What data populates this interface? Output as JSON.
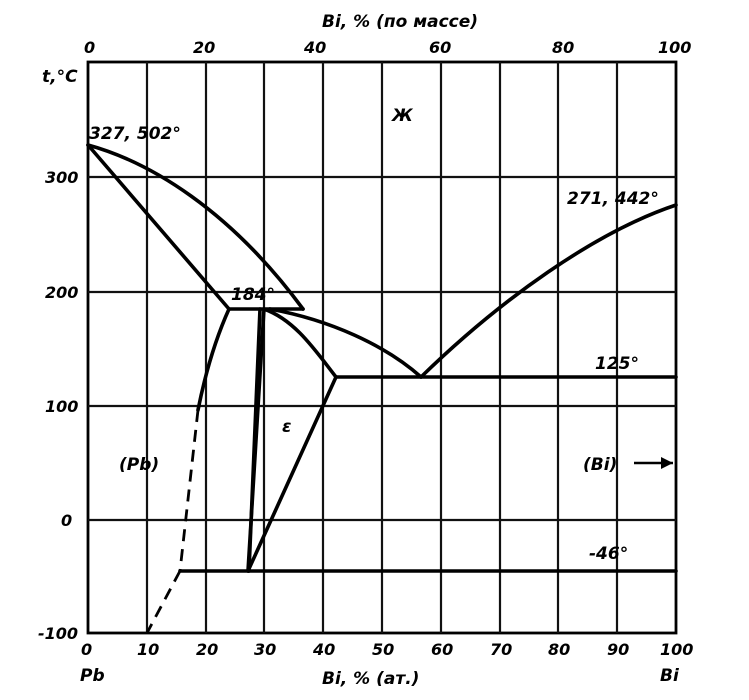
{
  "axes": {
    "top_title": "Bi, % (по массе)",
    "top_ticks": [
      "0",
      "20",
      "40",
      "60",
      "80",
      "100"
    ],
    "left_title": "t,°C",
    "left_ticks": [
      "300",
      "200",
      "100",
      "0",
      "-100"
    ],
    "bottom_title": "Bi, % (ат.)",
    "bottom_ticks": [
      "0",
      "10",
      "20",
      "30",
      "40",
      "50",
      "60",
      "70",
      "80",
      "90",
      "100"
    ],
    "left_element": "Pb",
    "right_element": "Bi",
    "x_range_at_percent": [
      0,
      100
    ],
    "t_range_celsius": [
      -100,
      400
    ]
  },
  "labels": {
    "pb_melting": "327, 502°",
    "bi_melting": "271, 442°",
    "peritectic": "184°",
    "eutectic": "125°",
    "low_transition": "-46°",
    "liquid": "Ж",
    "epsilon": "ε",
    "pb_solution": "(Pb)",
    "bi_solution": "(Bi)"
  },
  "phase_points": {
    "pb_melting": {
      "at_percent": 0,
      "t_celsius": 327
    },
    "bi_melting": {
      "at_percent": 100,
      "t_celsius": 271
    },
    "peritectic": {
      "t_celsius": 184,
      "at_percent": [
        24,
        31,
        37
      ]
    },
    "eutectic": {
      "t_celsius": 125,
      "at_percent": [
        43,
        57,
        100
      ]
    },
    "low_transition": {
      "t_celsius": -46,
      "at_percent": [
        16,
        28,
        100
      ]
    }
  }
}
